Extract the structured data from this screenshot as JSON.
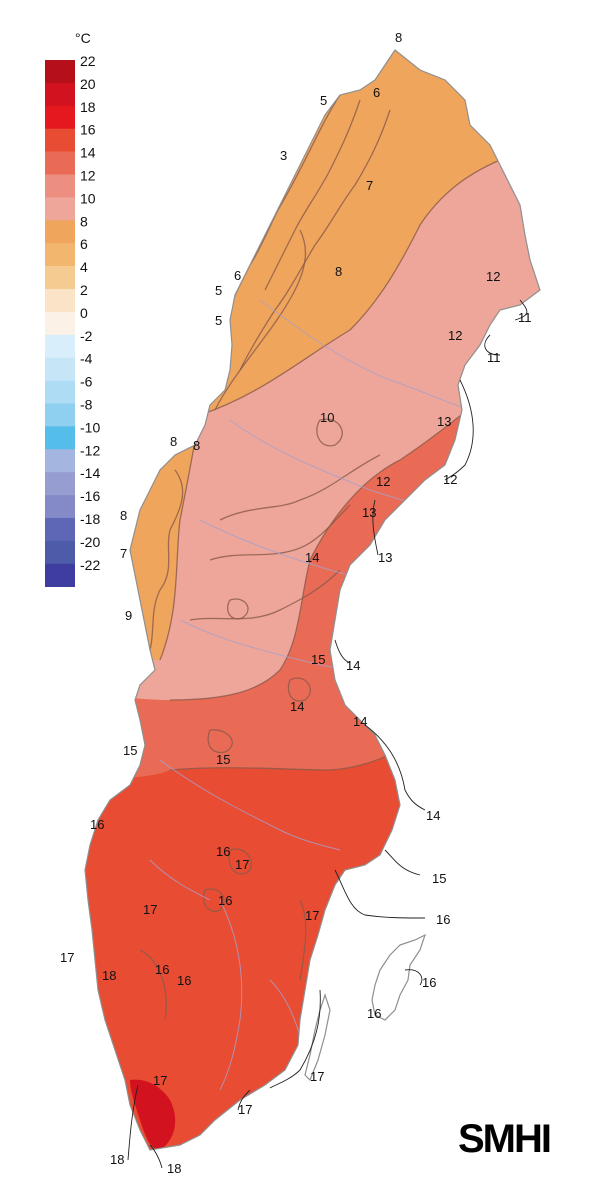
{
  "legend": {
    "unit": "°C",
    "steps": [
      {
        "label": "22",
        "color": "#b5101a"
      },
      {
        "label": "20",
        "color": "#d2121e"
      },
      {
        "label": "18",
        "color": "#e5171f"
      },
      {
        "label": "16",
        "color": "#e84c33"
      },
      {
        "label": "14",
        "color": "#ea6b55"
      },
      {
        "label": "12",
        "color": "#ed8f80"
      },
      {
        "label": "10",
        "color": "#eea69b"
      },
      {
        "label": "8",
        "color": "#f0a55c"
      },
      {
        "label": "6",
        "color": "#f3b66f"
      },
      {
        "label": "4",
        "color": "#f6cb91"
      },
      {
        "label": "2",
        "color": "#fae3c6"
      },
      {
        "label": "0",
        "color": "#fbf1e6"
      },
      {
        "label": "-2",
        "color": "#d8eefa"
      },
      {
        "label": "-4",
        "color": "#c6e6f8"
      },
      {
        "label": "-6",
        "color": "#aedcf5"
      },
      {
        "label": "-8",
        "color": "#8fd0f1"
      },
      {
        "label": "-10",
        "color": "#54bdea"
      },
      {
        "label": "-12",
        "color": "#a4b6df"
      },
      {
        "label": "-14",
        "color": "#969dd0"
      },
      {
        "label": "-16",
        "color": "#8489c7"
      },
      {
        "label": "-18",
        "color": "#5d67b5"
      },
      {
        "label": "-20",
        "color": "#4e5ba8"
      },
      {
        "label": "-22",
        "color": "#3f3ea0"
      }
    ]
  },
  "map": {
    "labels": [
      {
        "text": "8"
      },
      {
        "text": "6"
      },
      {
        "text": "5"
      },
      {
        "text": "3"
      },
      {
        "text": "7"
      },
      {
        "text": "6"
      },
      {
        "text": "5"
      },
      {
        "text": "5"
      },
      {
        "text": "8"
      },
      {
        "text": "12"
      },
      {
        "text": "11"
      },
      {
        "text": "12"
      },
      {
        "text": "11"
      },
      {
        "text": "10"
      },
      {
        "text": "13"
      },
      {
        "text": "8"
      },
      {
        "text": "8"
      },
      {
        "text": "12"
      },
      {
        "text": "12"
      },
      {
        "text": "8"
      },
      {
        "text": "13"
      },
      {
        "text": "7"
      },
      {
        "text": "14"
      },
      {
        "text": "13"
      },
      {
        "text": "9"
      },
      {
        "text": "15"
      },
      {
        "text": "14"
      },
      {
        "text": "14"
      },
      {
        "text": "14"
      },
      {
        "text": "15"
      },
      {
        "text": "15"
      },
      {
        "text": "14"
      },
      {
        "text": "16"
      },
      {
        "text": "16"
      },
      {
        "text": "17"
      },
      {
        "text": "15"
      },
      {
        "text": "16"
      },
      {
        "text": "17"
      },
      {
        "text": "17"
      },
      {
        "text": "16"
      },
      {
        "text": "17"
      },
      {
        "text": "18"
      },
      {
        "text": "16"
      },
      {
        "text": "16"
      },
      {
        "text": "16"
      },
      {
        "text": "16"
      },
      {
        "text": "17"
      },
      {
        "text": "17"
      },
      {
        "text": "17"
      },
      {
        "text": "18"
      },
      {
        "text": "18"
      }
    ]
  },
  "logo": {
    "text": "SMHI"
  },
  "colors": {
    "north": "#f0a55c",
    "mid": "#eea69b",
    "central": "#ea6b55",
    "south": "#e84c33",
    "hot": "#d2121e"
  }
}
